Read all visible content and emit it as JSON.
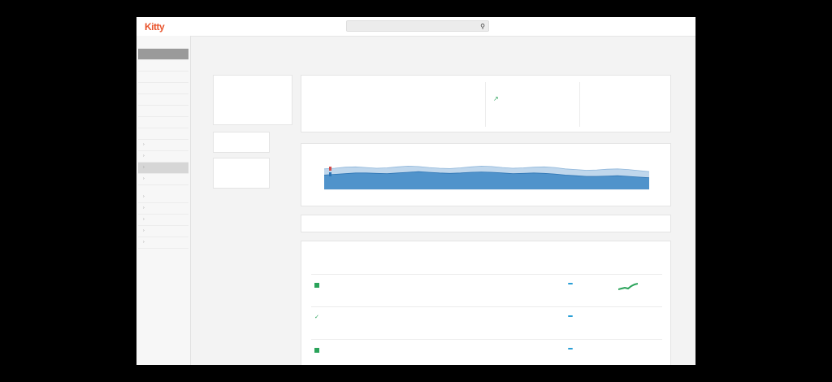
{
  "app": {
    "logo_text": "Kitty",
    "crumb_left": "",
    "crumb_accent": ""
  },
  "search": {
    "placeholder": ""
  },
  "topbar": {
    "right_items": [
      "",
      "",
      "",
      ""
    ]
  },
  "sidebar": {
    "items": [
      {
        "label": "",
        "state": "header"
      },
      {
        "label": "",
        "state": "active"
      },
      {
        "label": "",
        "state": "normal"
      },
      {
        "label": "",
        "state": "normal"
      },
      {
        "label": "",
        "state": "normal"
      },
      {
        "label": "",
        "state": "normal"
      },
      {
        "label": "",
        "state": "normal"
      },
      {
        "label": "",
        "state": "normal"
      },
      {
        "label": "",
        "state": "red"
      },
      {
        "label": "",
        "state": "child"
      },
      {
        "label": "",
        "state": "child"
      },
      {
        "label": "",
        "state": "selected"
      },
      {
        "label": "",
        "state": "child"
      },
      {
        "label": "",
        "state": "child"
      },
      {
        "label": "",
        "state": "child"
      },
      {
        "label": "",
        "state": "child"
      },
      {
        "label": "",
        "state": "child"
      },
      {
        "label": "",
        "state": "child"
      }
    ]
  },
  "page": {
    "title": ""
  },
  "left_panel": {
    "card1": {
      "label": "",
      "value": "",
      "sub": "",
      "sub2": ""
    },
    "card2": {
      "label": "",
      "tag1": "",
      "tag2": ""
    },
    "card3": {
      "label": "",
      "tag1": "",
      "tag2": "",
      "tag3": "",
      "tag4": ""
    }
  },
  "kpis": [
    {
      "label": "",
      "value": "",
      "sub": "",
      "link": ""
    },
    {
      "label": "",
      "value": "",
      "sub": ""
    },
    {
      "label": "",
      "value": "",
      "sub": ""
    }
  ],
  "chart_data": {
    "type": "area",
    "title": "",
    "xlabel": "",
    "ylabel": "",
    "y_tick_labels": [
      "",
      "",
      "",
      ""
    ],
    "x_tick_labels": [
      "",
      "",
      "",
      "",
      "",
      "",
      "",
      "",
      "",
      ""
    ],
    "series": [
      {
        "values": [
          60,
          62,
          65,
          66,
          64,
          62,
          63,
          66,
          68,
          67,
          64,
          62,
          61,
          63,
          66,
          68,
          67,
          64,
          62,
          63,
          65,
          66,
          64,
          60,
          58,
          56,
          57,
          59,
          60,
          58,
          55,
          52
        ]
      },
      {
        "values": [
          42,
          44,
          46,
          48,
          48,
          47,
          46,
          48,
          50,
          52,
          50,
          48,
          47,
          48,
          50,
          51,
          50,
          48,
          46,
          47,
          48,
          47,
          45,
          42,
          40,
          38,
          38,
          39,
          40,
          38,
          36,
          34
        ]
      }
    ],
    "colors": [
      "#b9d3ea",
      "#4a8fc9"
    ],
    "ylim": [
      0,
      100
    ],
    "grid": false,
    "legend": "none"
  },
  "colors": {
    "brand": "#e8532b",
    "accent": "#2a73b8",
    "chart_light": "#b9d3ea",
    "chart_dark": "#4a8fc9",
    "status_green": "#2aa35a"
  },
  "table": {
    "headers": [
      "",
      "",
      "",
      "",
      ""
    ],
    "rows": [
      {
        "status": "square",
        "name": "",
        "desc": "",
        "date1": "",
        "date2": "",
        "badge": "",
        "trend": ""
      },
      {
        "status": "check",
        "name": "",
        "desc": "",
        "date1": "",
        "date2": "",
        "badge": "",
        "trend": ""
      },
      {
        "status": "square",
        "name": "",
        "desc": "",
        "date1": "",
        "date2": "",
        "badge": "",
        "trend": ""
      }
    ]
  }
}
